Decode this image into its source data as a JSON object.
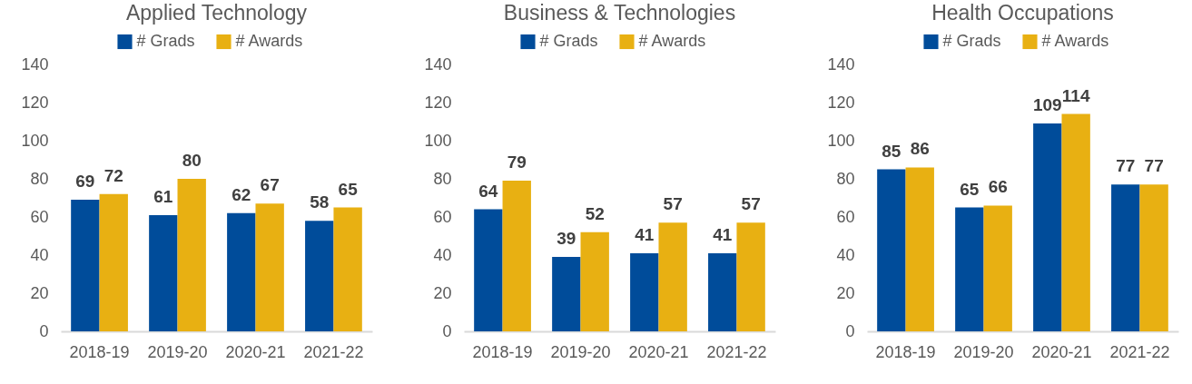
{
  "chart_data": [
    {
      "type": "bar",
      "title": "Applied Technology",
      "categories": [
        "2018-19",
        "2019-20",
        "2020-21",
        "2021-22"
      ],
      "series": [
        {
          "name": "# Grads",
          "color": "#004c9a",
          "values": [
            69,
            61,
            62,
            58
          ]
        },
        {
          "name": "# Awards",
          "color": "#e8b012",
          "values": [
            72,
            80,
            67,
            65
          ]
        }
      ],
      "ylim": [
        0,
        140
      ],
      "yticks": [
        0,
        20,
        40,
        60,
        80,
        100,
        120,
        140
      ],
      "data_labels": true,
      "legend": "top"
    },
    {
      "type": "bar",
      "title": "Business & Technologies",
      "categories": [
        "2018-19",
        "2019-20",
        "2020-21",
        "2021-22"
      ],
      "series": [
        {
          "name": "# Grads",
          "color": "#004c9a",
          "values": [
            64,
            39,
            41,
            41
          ]
        },
        {
          "name": "# Awards",
          "color": "#e8b012",
          "values": [
            79,
            52,
            57,
            57
          ]
        }
      ],
      "ylim": [
        0,
        140
      ],
      "yticks": [
        0,
        20,
        40,
        60,
        80,
        100,
        120,
        140
      ],
      "data_labels": true,
      "legend": "top"
    },
    {
      "type": "bar",
      "title": "Health Occupations",
      "categories": [
        "2018-19",
        "2019-20",
        "2020-21",
        "2021-22"
      ],
      "series": [
        {
          "name": "# Grads",
          "color": "#004c9a",
          "values": [
            85,
            65,
            109,
            77
          ]
        },
        {
          "name": "# Awards",
          "color": "#e8b012",
          "values": [
            86,
            66,
            114,
            77
          ]
        }
      ],
      "ylim": [
        0,
        140
      ],
      "yticks": [
        0,
        20,
        40,
        60,
        80,
        100,
        120,
        140
      ],
      "data_labels": true,
      "legend": "top"
    }
  ]
}
